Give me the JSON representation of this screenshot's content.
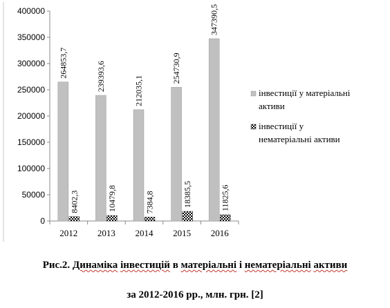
{
  "chart_data": {
    "type": "bar",
    "categories": [
      "2012",
      "2013",
      "2014",
      "2015",
      "2016"
    ],
    "series": [
      {
        "name": "інвестиції  у матеріальні активи",
        "values": [
          264853.7,
          239393.6,
          212035.1,
          254730.9,
          347390.5
        ],
        "labels": [
          "264853,7",
          "239393,6",
          "212035,1",
          "254730,9",
          "347390,5"
        ],
        "color": "#c0c0c0",
        "fill": "solid-gray"
      },
      {
        "name": "інвестиції  у нематеріальні  активи",
        "values": [
          8402.3,
          10479.8,
          7384.8,
          18385.5,
          11825.6
        ],
        "labels": [
          "8402,3",
          "10479,8",
          "7384,8",
          "18385,5",
          "11825,6"
        ],
        "color": "#000000",
        "fill": "checker-pattern"
      }
    ],
    "y_ticks": [
      "0",
      "50000",
      "100000",
      "150000",
      "200000",
      "250000",
      "300000",
      "350000",
      "400000"
    ],
    "ylim": [
      0,
      400000
    ],
    "grid": false,
    "legend_position": "right"
  },
  "caption": {
    "line1_prefix": "Рис.2. ",
    "line1_segments": [
      {
        "text": "Динаміка",
        "mark": true
      },
      {
        "text": " ",
        "mark": false
      },
      {
        "text": "інвестицій",
        "mark": true
      },
      {
        "text": " в ",
        "mark": false
      },
      {
        "text": "матеріальні",
        "mark": true
      },
      {
        "text": " і ",
        "mark": false
      },
      {
        "text": "нематеріальні",
        "mark": true
      },
      {
        "text": " ",
        "mark": false
      },
      {
        "text": "активи",
        "mark": true
      }
    ],
    "line2": "за 2012-2016 рр., млн. грн. [2]"
  }
}
